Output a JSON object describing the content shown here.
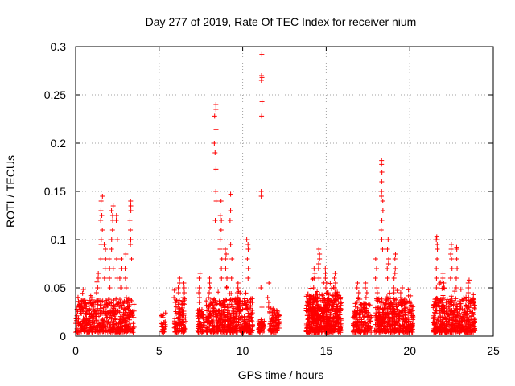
{
  "chart_data": {
    "type": "scatter",
    "title": "Day 277 of 2019, Rate Of TEC Index for receiver nium",
    "xlabel": "GPS time / hours",
    "ylabel": "ROTI / TECUs",
    "xlim": [
      0,
      25
    ],
    "ylim": [
      0,
      0.3
    ],
    "xticks": [
      "0",
      "5",
      "10",
      "15",
      "20",
      "25"
    ],
    "xtick_values": [
      0,
      5,
      10,
      15,
      20,
      25
    ],
    "yticks": [
      "0",
      "0.05",
      "0.1",
      "0.15",
      "0.2",
      "0.25",
      "0.3"
    ],
    "ytick_values": [
      0,
      0.05,
      0.1,
      0.15,
      0.2,
      0.25,
      0.3
    ],
    "grid": true,
    "marker": "plus",
    "marker_color": "#ff0000",
    "clusters": [
      {
        "x_range": [
          0.0,
          3.5
        ],
        "base_max": 0.035,
        "count": 520
      },
      {
        "x_range": [
          5.1,
          5.4
        ],
        "base_max": 0.02,
        "count": 25
      },
      {
        "x_range": [
          5.9,
          6.6
        ],
        "base_max": 0.035,
        "count": 110
      },
      {
        "x_range": [
          7.3,
          7.7
        ],
        "base_max": 0.025,
        "count": 60
      },
      {
        "x_range": [
          7.8,
          10.6
        ],
        "base_max": 0.035,
        "count": 480
      },
      {
        "x_range": [
          10.9,
          11.3
        ],
        "base_max": 0.012,
        "count": 40
      },
      {
        "x_range": [
          11.6,
          12.2
        ],
        "base_max": 0.025,
        "count": 80
      },
      {
        "x_range": [
          13.8,
          15.9
        ],
        "base_max": 0.04,
        "count": 520
      },
      {
        "x_range": [
          16.6,
          17.7
        ],
        "base_max": 0.03,
        "count": 160
      },
      {
        "x_range": [
          17.9,
          20.2
        ],
        "base_max": 0.035,
        "count": 420
      },
      {
        "x_range": [
          21.4,
          23.9
        ],
        "base_max": 0.035,
        "count": 460
      }
    ],
    "spikes": [
      {
        "x": 0.2,
        "y": [
          0.03,
          0.032,
          0.036
        ]
      },
      {
        "x": 0.9,
        "y": [
          0.035,
          0.04,
          0.042
        ]
      },
      {
        "x": 1.3,
        "y": [
          0.045,
          0.05,
          0.056,
          0.06,
          0.065
        ]
      },
      {
        "x": 1.55,
        "y": [
          0.08,
          0.095,
          0.1,
          0.11,
          0.12,
          0.125,
          0.13,
          0.14,
          0.145
        ]
      },
      {
        "x": 1.75,
        "y": [
          0.06,
          0.07,
          0.08,
          0.09,
          0.095
        ]
      },
      {
        "x": 2.0,
        "y": [
          0.05,
          0.06,
          0.07,
          0.08
        ]
      },
      {
        "x": 2.2,
        "y": [
          0.07,
          0.09,
          0.1,
          0.11,
          0.12,
          0.125,
          0.13,
          0.135
        ]
      },
      {
        "x": 2.45,
        "y": [
          0.06,
          0.08,
          0.1,
          0.12,
          0.125
        ]
      },
      {
        "x": 2.7,
        "y": [
          0.05,
          0.06,
          0.07,
          0.08
        ]
      },
      {
        "x": 3.0,
        "y": [
          0.04,
          0.05,
          0.06,
          0.07,
          0.085
        ]
      },
      {
        "x": 3.3,
        "y": [
          0.08,
          0.095,
          0.1,
          0.11,
          0.12,
          0.13,
          0.135,
          0.14
        ]
      },
      {
        "x": 5.9,
        "y": [
          0.035,
          0.04
        ]
      },
      {
        "x": 6.2,
        "y": [
          0.045,
          0.05,
          0.055,
          0.06
        ]
      },
      {
        "x": 6.5,
        "y": [
          0.04,
          0.045,
          0.05,
          0.055
        ]
      },
      {
        "x": 7.4,
        "y": [
          0.035,
          0.04,
          0.045,
          0.05,
          0.06,
          0.065
        ]
      },
      {
        "x": 8.0,
        "y": [
          0.04,
          0.045,
          0.05,
          0.055,
          0.06
        ]
      },
      {
        "x": 8.35,
        "y": [
          0.12,
          0.14,
          0.15,
          0.173,
          0.19,
          0.2,
          0.214,
          0.228,
          0.235,
          0.24
        ]
      },
      {
        "x": 8.7,
        "y": [
          0.06,
          0.07,
          0.08,
          0.09,
          0.1,
          0.11,
          0.12,
          0.125,
          0.14
        ]
      },
      {
        "x": 9.0,
        "y": [
          0.05,
          0.06,
          0.07,
          0.08,
          0.085,
          0.09
        ]
      },
      {
        "x": 9.3,
        "y": [
          0.06,
          0.08,
          0.095,
          0.12,
          0.13,
          0.147
        ]
      },
      {
        "x": 9.7,
        "y": [
          0.04,
          0.045,
          0.05,
          0.055
        ]
      },
      {
        "x": 10.3,
        "y": [
          0.06,
          0.07,
          0.08,
          0.09,
          0.095,
          0.1
        ]
      },
      {
        "x": 11.1,
        "y": [
          0.03,
          0.05,
          0.145,
          0.15,
          0.228,
          0.243,
          0.265,
          0.268,
          0.27,
          0.292
        ]
      },
      {
        "x": 11.55,
        "y": [
          0.03,
          0.035,
          0.04,
          0.055
        ]
      },
      {
        "x": 14.3,
        "y": [
          0.05,
          0.06,
          0.065,
          0.07
        ]
      },
      {
        "x": 14.6,
        "y": [
          0.06,
          0.07,
          0.075,
          0.08,
          0.085,
          0.09
        ]
      },
      {
        "x": 15.0,
        "y": [
          0.045,
          0.05,
          0.055,
          0.06,
          0.065,
          0.07
        ]
      },
      {
        "x": 15.5,
        "y": [
          0.045,
          0.05,
          0.055,
          0.06,
          0.065
        ]
      },
      {
        "x": 16.9,
        "y": [
          0.035,
          0.04,
          0.045,
          0.05,
          0.055
        ]
      },
      {
        "x": 17.4,
        "y": [
          0.04,
          0.045,
          0.05,
          0.055
        ]
      },
      {
        "x": 18.0,
        "y": [
          0.045,
          0.05,
          0.06,
          0.07,
          0.08
        ]
      },
      {
        "x": 18.35,
        "y": [
          0.09,
          0.1,
          0.11,
          0.12,
          0.13,
          0.14,
          0.145,
          0.15,
          0.16,
          0.17,
          0.178,
          0.182
        ]
      },
      {
        "x": 18.7,
        "y": [
          0.06,
          0.07,
          0.075,
          0.08,
          0.09,
          0.1
        ]
      },
      {
        "x": 19.1,
        "y": [
          0.045,
          0.05,
          0.06,
          0.065,
          0.07,
          0.08,
          0.085
        ]
      },
      {
        "x": 19.5,
        "y": [
          0.04,
          0.045,
          0.05
        ]
      },
      {
        "x": 21.6,
        "y": [
          0.05,
          0.06,
          0.07,
          0.08,
          0.09,
          0.095,
          0.1,
          0.103
        ]
      },
      {
        "x": 22.0,
        "y": [
          0.04,
          0.05,
          0.055,
          0.06,
          0.065
        ]
      },
      {
        "x": 22.5,
        "y": [
          0.06,
          0.07,
          0.08,
          0.085,
          0.09,
          0.095
        ]
      },
      {
        "x": 22.8,
        "y": [
          0.05,
          0.06,
          0.07,
          0.08,
          0.09,
          0.092
        ]
      },
      {
        "x": 23.5,
        "y": [
          0.035,
          0.04,
          0.045,
          0.05,
          0.055,
          0.058
        ]
      }
    ]
  }
}
